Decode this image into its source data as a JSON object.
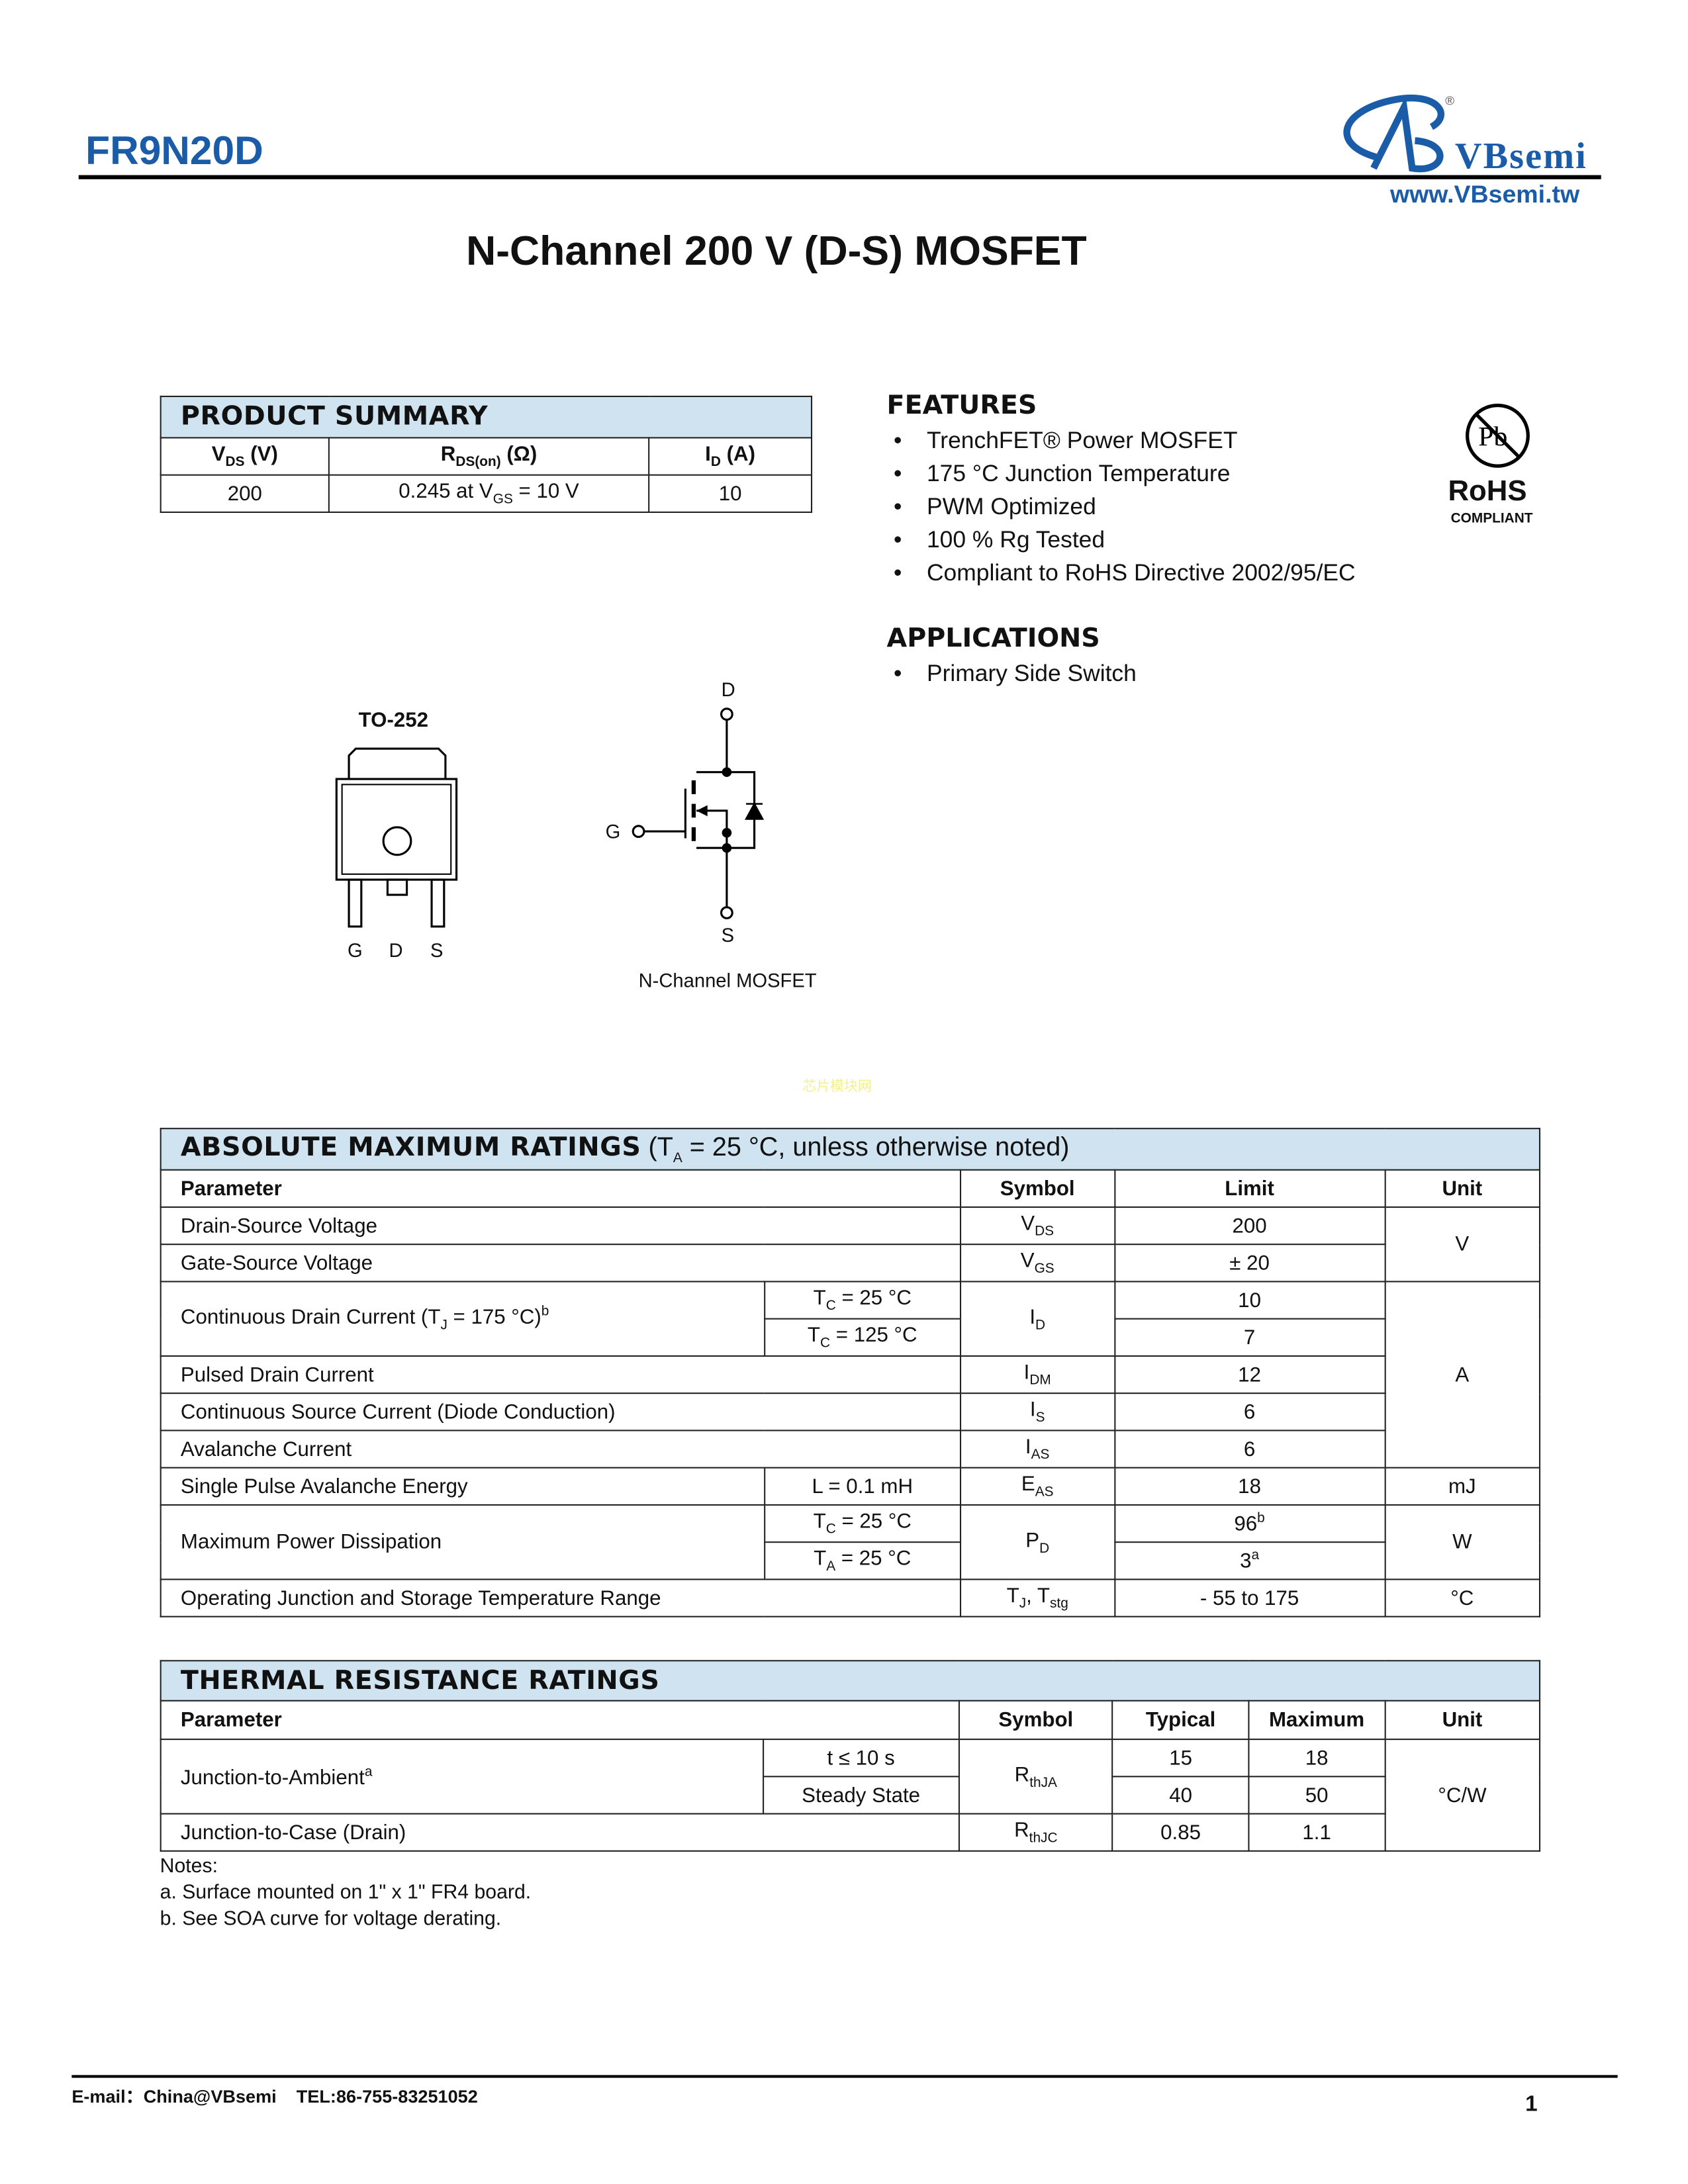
{
  "header": {
    "part_number": "FR9N20D",
    "brand": "VBsemi",
    "website": "www.VBsemi.tw",
    "registered": "®"
  },
  "title": "N-Channel 200 V (D-S) MOSFET",
  "product_summary": {
    "title": "PRODUCT SUMMARY",
    "headers": [
      {
        "main": "V",
        "sub": "DS",
        "rest": " (V)"
      },
      {
        "main": "R",
        "sub": "DS(on)",
        "rest": " (Ω)"
      },
      {
        "main": "I",
        "sub": "D",
        "rest": " (A)"
      }
    ],
    "row": {
      "vds": "200",
      "rds_pre": "0.245  at V",
      "rds_sub": "GS",
      "rds_post": " = 10 V",
      "id": "10"
    }
  },
  "features": {
    "title": "FEATURES",
    "items": [
      "TrenchFET® Power MOSFET",
      "175 °C Junction Temperature",
      "PWM Optimized",
      "100 % Rg Tested",
      "Compliant to RoHS Directive 2002/95/EC"
    ]
  },
  "rohs": {
    "symbol": "Pb",
    "label": "RoHS",
    "sub": "COMPLIANT"
  },
  "applications": {
    "title": "APPLICATIONS",
    "items": [
      "Primary Side Switch"
    ]
  },
  "package": {
    "name": "TO-252",
    "pins": [
      "G",
      "D",
      "S"
    ]
  },
  "schematic": {
    "d": "D",
    "g": "G",
    "s": "S",
    "caption": "N-Channel MOSFET"
  },
  "watermark": "芯片模块网",
  "abs_max": {
    "title": "ABSOLUTE MAXIMUM RATINGS",
    "cond": " (T",
    "cond_sub": "A",
    "cond_post": " = 25 °C, unless otherwise noted)",
    "headers": [
      "Parameter",
      "Symbol",
      "Limit",
      "Unit"
    ],
    "rows": [
      {
        "param": "Drain-Source Voltage",
        "sym": "V",
        "sub": "DS",
        "limit": "200"
      },
      {
        "param": "Gate-Source Voltage",
        "sym": "V",
        "sub": "GS",
        "limit": "± 20"
      },
      {
        "param": "Continuous Drain Current (T",
        "psub": "J",
        "ppost": " = 175 °C)",
        "psup": "b",
        "c1": "T",
        "c1s": "C",
        "c1p": " = 25 °C",
        "c2": "T",
        "c2s": "C",
        "c2p": " = 125 °C",
        "sym": "I",
        "sub": "D",
        "limit": "10",
        "limit2": "7"
      },
      {
        "param": "Pulsed Drain Current",
        "sym": "I",
        "sub": "DM",
        "limit": "12"
      },
      {
        "param": "Continuous Source Current (Diode Conduction)",
        "sym": "I",
        "sub": "S",
        "limit": "6"
      },
      {
        "param": "Avalanche Current",
        "sym": "I",
        "sub": "AS",
        "limit": "6"
      },
      {
        "param": "Single Pulse Avalanche Energy",
        "cond": "L = 0.1 mH",
        "sym": "E",
        "sub": "AS",
        "limit": "18",
        "unit": "mJ"
      },
      {
        "param": "Maximum Power Dissipation",
        "c1": "T",
        "c1s": "C",
        "c1p": " = 25 °C",
        "c2": "T",
        "c2s": "A",
        "c2p": " = 25 °C",
        "sym": "P",
        "sub": "D",
        "limit": "96",
        "lsup": "b",
        "limit2": "3",
        "l2sup": "a",
        "unit": "W"
      },
      {
        "param": "Operating Junction and Storage Temperature Range",
        "sym": "T",
        "sub": "J",
        "sym2": ", T",
        "sub2": "stg",
        "limit": "- 55 to 175",
        "unit": "°C"
      }
    ],
    "unit_v": "V",
    "unit_a": "A"
  },
  "thermal": {
    "title": "THERMAL RESISTANCE RATINGS",
    "headers": [
      "Parameter",
      "Symbol",
      "Typical",
      "Maximum",
      "Unit"
    ],
    "r1": {
      "param": "Junction-to-Ambient",
      "sup": "a",
      "c1": "t ≤ 10 s",
      "c2": "Steady State",
      "sym": "R",
      "sub": "thJA",
      "typ1": "15",
      "max1": "18",
      "typ2": "40",
      "max2": "50",
      "unit": "°C/W"
    },
    "r2": {
      "param": "Junction-to-Case (Drain)",
      "sym": "R",
      "sub": "thJC",
      "typ": "0.85",
      "max": "1.1"
    }
  },
  "notes": {
    "title": "Notes:",
    "a": "a. Surface mounted on 1\" x 1\" FR4 board.",
    "b": "b. See SOA curve for voltage derating."
  },
  "footer": {
    "contact": "E-mail：China@VBsemi    TEL:86-755-83251052",
    "page": "1"
  },
  "colors": {
    "brand": "#1a5ca8",
    "table_band": "#cfe3f1"
  }
}
